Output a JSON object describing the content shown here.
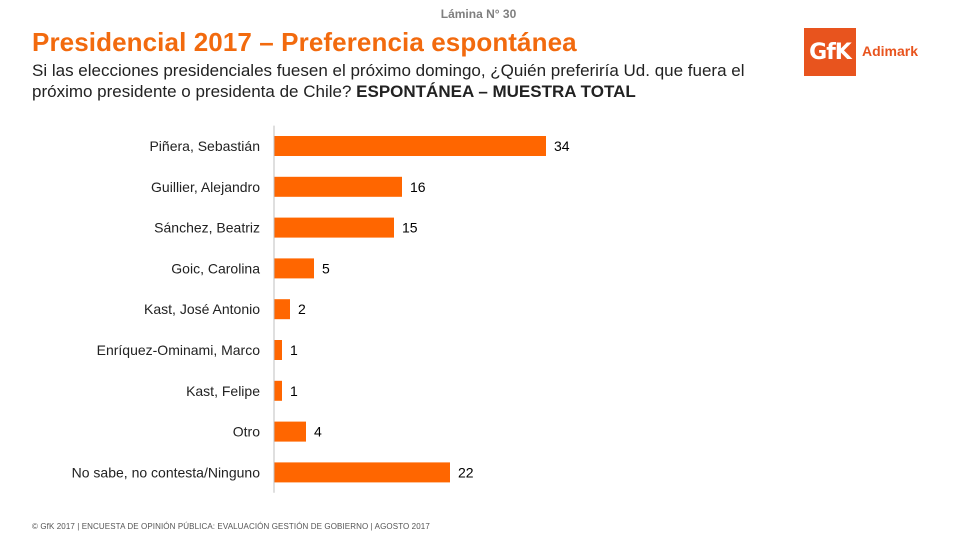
{
  "slide_number": "Lámina N° 30",
  "title": "Presidencial 2017 – Preferencia espontánea",
  "subtitle": {
    "question": "Si las elecciones presidenciales fuesen el próximo domingo, ¿Quién preferiría Ud. que fuera el próximo presidente o presidenta de Chile?",
    "emphasis": "ESPONTÁNEA – MUESTRA TOTAL"
  },
  "logo": {
    "mark": "GfK",
    "text": "Adimark",
    "color": "#e8541e"
  },
  "footer": "© GfK 2017 | ENCUESTA DE OPINIÓN PÚBLICA: EVALUACIÓN GESTIÓN DE GOBIERNO | AGOSTO 2017",
  "chart_data": {
    "type": "bar",
    "orientation": "horizontal",
    "bar_color": "#ff6600",
    "categories": [
      "Piñera, Sebastián",
      "Guillier, Alejandro",
      "Sánchez, Beatriz",
      "Goic, Carolina",
      "Kast, José Antonio",
      "Enríquez-Ominami, Marco",
      "Kast, Felipe",
      "Otro",
      "No sabe, no contesta/Ninguno"
    ],
    "values": [
      34,
      16,
      15,
      5,
      2,
      1,
      1,
      4,
      22
    ],
    "xlim": [
      0,
      34
    ],
    "grid": false,
    "legend": false
  }
}
